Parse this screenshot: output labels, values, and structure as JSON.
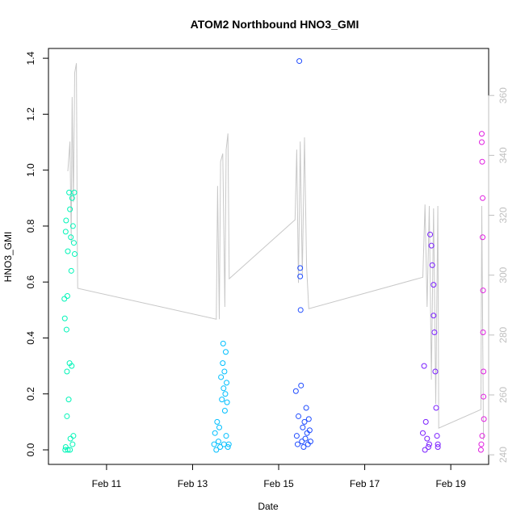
{
  "chart_data": {
    "type": "scatter",
    "title": "ATOM2 Northbound HNO3_GMI",
    "x_label": "Date",
    "y_label": "HNO3_GMI",
    "xlim": [
      9.65,
      19.88
    ],
    "ylim": [
      -0.052,
      1.435
    ],
    "y2lim": [
      236.8,
      375.7
    ],
    "xticks": [
      {
        "value": 11,
        "label": "Feb 11"
      },
      {
        "value": 13,
        "label": "Feb 13"
      },
      {
        "value": 15,
        "label": "Feb 15"
      },
      {
        "value": 17,
        "label": "Feb 17"
      },
      {
        "value": 19,
        "label": "Feb 19"
      }
    ],
    "yticks": [
      {
        "value": 0,
        "label": "0.0"
      },
      0.2,
      0.4,
      0.6,
      0.8,
      {
        "value": 1,
        "label": "1.0"
      },
      1.2,
      1.4
    ],
    "y2ticks": [
      240,
      260,
      280,
      300,
      320,
      340,
      360
    ],
    "y2_color": "#bfbfbf",
    "series": [
      {
        "color": "#00f5b8",
        "x": [
          10.02,
          10.03,
          10.04,
          10.05,
          10.05,
          10.06,
          10.07,
          10.08,
          10.08,
          10.09,
          10.1,
          10.1,
          10.12,
          10.13,
          10.14,
          10.15,
          10.15,
          10.16,
          10.17,
          10.18,
          10.19,
          10.2,
          10.21,
          10.22,
          10.23,
          10.24,
          10.25,
          10.26
        ],
        "values": [
          0.54,
          0.47,
          0.0,
          0.01,
          0.78,
          0.82,
          0.43,
          0.12,
          0.28,
          0.55,
          0.71,
          0.0,
          0.18,
          0.92,
          0.31,
          0.86,
          0.0,
          0.04,
          0.76,
          0.64,
          0.3,
          0.9,
          0.02,
          0.8,
          0.05,
          0.74,
          0.92,
          0.7
        ]
      },
      {
        "color": "#00bfff",
        "x": [
          13.5,
          13.52,
          13.55,
          13.57,
          13.6,
          13.62,
          13.64,
          13.66,
          13.68,
          13.7,
          13.71,
          13.72,
          13.73,
          13.74,
          13.75,
          13.76,
          13.77,
          13.78,
          13.79,
          13.8,
          13.82,
          13.84
        ],
        "values": [
          0.02,
          0.06,
          0.0,
          0.1,
          0.03,
          0.08,
          0.01,
          0.26,
          0.18,
          0.31,
          0.38,
          0.22,
          0.02,
          0.28,
          0.14,
          0.2,
          0.35,
          0.05,
          0.24,
          0.17,
          0.01,
          0.02
        ]
      },
      {
        "color": "#1f4cff",
        "x": [
          15.4,
          15.42,
          15.44,
          15.46,
          15.48,
          15.5,
          15.5,
          15.51,
          15.52,
          15.54,
          15.56,
          15.58,
          15.6,
          15.62,
          15.64,
          15.66,
          15.68,
          15.7,
          15.72,
          15.74
        ],
        "values": [
          0.21,
          0.05,
          0.02,
          0.12,
          1.39,
          0.65,
          0.62,
          0.5,
          0.23,
          0.03,
          0.08,
          0.01,
          0.1,
          0.04,
          0.15,
          0.06,
          0.02,
          0.11,
          0.07,
          0.03
        ]
      },
      {
        "color": "#7a1fff",
        "x": [
          18.35,
          18.38,
          18.4,
          18.42,
          18.45,
          18.48,
          18.5,
          18.52,
          18.55,
          18.57,
          18.6,
          18.6,
          18.62,
          18.64,
          18.66,
          18.68,
          18.7,
          18.7
        ],
        "values": [
          0.06,
          0.3,
          0.0,
          0.1,
          0.04,
          0.01,
          0.02,
          0.77,
          0.73,
          0.66,
          0.59,
          0.48,
          0.42,
          0.28,
          0.15,
          0.05,
          0.01,
          0.02
        ]
      },
      {
        "color": "#e020e0",
        "x": [
          19.7,
          19.71,
          19.72,
          19.72,
          19.73,
          19.73,
          19.74,
          19.74,
          19.75,
          19.75,
          19.76,
          19.76,
          19.77
        ],
        "values": [
          0.0,
          0.02,
          1.13,
          1.1,
          0.05,
          1.03,
          0.76,
          0.9,
          0.57,
          0.42,
          0.28,
          0.19,
          0.11
        ]
      },
      {
        "type": "line",
        "axis": "y2",
        "color": "#c8c8c8",
        "x": [
          10.1,
          10.15,
          10.18,
          10.2,
          10.23,
          10.26,
          10.3,
          10.32,
          10.33,
          13.55,
          13.58,
          13.62,
          13.65,
          13.7,
          13.75,
          13.78,
          13.82,
          13.85,
          15.38,
          15.42,
          15.46,
          15.5,
          15.55,
          15.6,
          15.65,
          15.7,
          18.35,
          18.4,
          18.45,
          18.5,
          18.55,
          18.6,
          18.65,
          18.7,
          18.72,
          19.7,
          19.72,
          19.76
        ],
        "values": [
          334.7,
          344.6,
          310.9,
          359.5,
          324.4,
          367.6,
          370.8,
          310.9,
          295.6,
          285.3,
          329.8,
          285.3,
          337.9,
          340.6,
          289.4,
          341.9,
          347.3,
          298.8,
          318.5,
          341.9,
          297.4,
          344.6,
          300.1,
          346.0,
          302.8,
          288.8,
          299.3,
          323.6,
          289.4,
          323.1,
          265.1,
          322.3,
          257.0,
          323.1,
          248.9,
          255.1,
          323.1,
          244.9
        ]
      }
    ]
  }
}
